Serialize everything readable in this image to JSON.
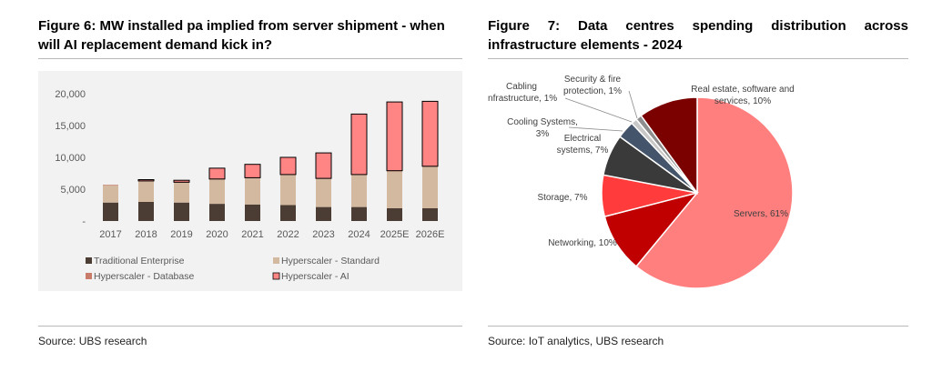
{
  "colors": {
    "traditional": "#4b3d33",
    "hyperscaler_standard": "#d2b9a0",
    "hyperscaler_database": "#c97c6a",
    "hyperscaler_ai": "#ff8585",
    "servers": "#ff7f7f",
    "networking": "#c00000",
    "storage": "#ff3b3b",
    "electrical": "#3a3a3a",
    "cooling": "#44546a",
    "security": "#8e8e8e",
    "cabling": "#c8c8c8",
    "real_estate": "#7b0000"
  },
  "left": {
    "title": "Figure 6: MW installed pa implied from server shipment - when will AI replacement demand kick in?",
    "source": "Source: UBS research"
  },
  "right": {
    "title": "Figure 7: Data centres spending distribution across infrastructure elements - 2024",
    "source": "Source: IoT analytics, UBS research"
  },
  "chart_data": [
    {
      "type": "bar",
      "stacked": true,
      "title": "MW installed pa implied from server shipment",
      "categories": [
        "2017",
        "2018",
        "2019",
        "2020",
        "2021",
        "2022",
        "2023",
        "2024",
        "2025E",
        "2026E"
      ],
      "series": [
        {
          "name": "Traditional Enterprise",
          "values": [
            2900,
            3000,
            2900,
            2700,
            2600,
            2500,
            2200,
            2200,
            2000,
            2000
          ]
        },
        {
          "name": "Hyperscaler - Standard",
          "values": [
            2700,
            3200,
            3100,
            3800,
            4100,
            4700,
            4400,
            5000,
            5800,
            6500
          ]
        },
        {
          "name": "Hyperscaler - Database",
          "values": [
            100,
            100,
            100,
            100,
            100,
            100,
            100,
            100,
            100,
            100
          ]
        },
        {
          "name": "Hyperscaler - AI",
          "values": [
            0,
            200,
            300,
            1700,
            2100,
            2700,
            4000,
            9500,
            10800,
            10200
          ]
        }
      ],
      "yticks": [
        "-",
        "5,000",
        "10,000",
        "15,000",
        "20,000"
      ],
      "ylim": [
        0,
        20000
      ],
      "legend_position": "bottom"
    },
    {
      "type": "pie",
      "title": "Data centres spending distribution across infrastructure elements - 2024",
      "slices": [
        {
          "key": "servers",
          "value": 61,
          "label_lines": [
            "Servers, 61%"
          ]
        },
        {
          "key": "networking",
          "value": 10,
          "label_lines": [
            "Networking, 10%"
          ]
        },
        {
          "key": "storage",
          "value": 7,
          "label_lines": [
            "Storage, 7%"
          ]
        },
        {
          "key": "electrical",
          "value": 7,
          "label_lines": [
            "Electrical",
            "systems, 7%"
          ]
        },
        {
          "key": "cooling",
          "value": 3,
          "label_lines": [
            "Cooling Systems,",
            "3%"
          ]
        },
        {
          "key": "cabling",
          "value": 1,
          "label_lines": [
            "Cabling",
            "infrastructure, 1%"
          ]
        },
        {
          "key": "security",
          "value": 1,
          "label_lines": [
            "Security & fire",
            "protection, 1%"
          ]
        },
        {
          "key": "real_estate",
          "value": 10,
          "label_lines": [
            "Real estate, software and",
            "services, 10%"
          ]
        }
      ]
    }
  ]
}
